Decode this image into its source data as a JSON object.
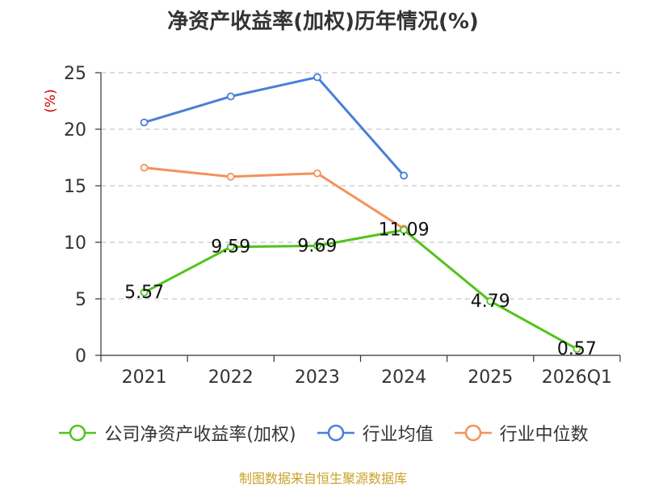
{
  "chart_data": {
    "type": "line",
    "title": "净资产收益率(加权)历年情况(%)",
    "ylabel": "(%)",
    "xlabel": "",
    "categories": [
      "2021",
      "2022",
      "2023",
      "2024",
      "2025",
      "2026Q1"
    ],
    "ylim": [
      0,
      25
    ],
    "yticks": [
      0,
      5,
      10,
      15,
      20,
      25
    ],
    "grid": true,
    "legend_position": "bottom",
    "series": [
      {
        "name": "公司净资产收益率(加权)",
        "color": "#52c41a",
        "values": [
          5.57,
          9.59,
          9.69,
          11.09,
          4.79,
          0.57
        ],
        "labels": [
          "5.57",
          "9.59",
          "9.69",
          "11.09",
          "4.79",
          "0.57"
        ]
      },
      {
        "name": "行业均值",
        "color": "#4a7fd8",
        "values": [
          20.6,
          22.9,
          24.6,
          15.9,
          null,
          null
        ]
      },
      {
        "name": "行业中位数",
        "color": "#f4915a",
        "values": [
          16.6,
          15.8,
          16.1,
          11.2,
          null,
          null
        ]
      }
    ],
    "source": "制图数据来自恒生聚源数据库"
  }
}
